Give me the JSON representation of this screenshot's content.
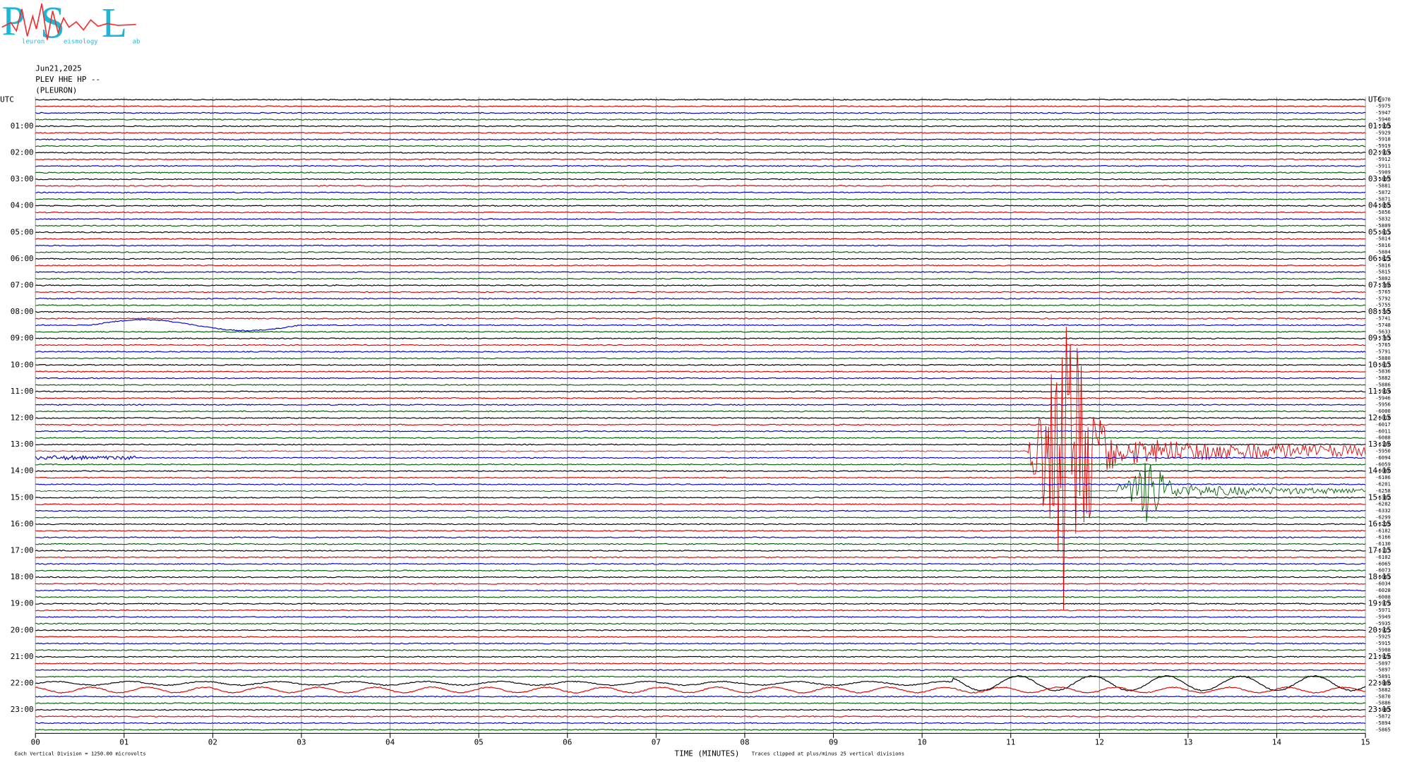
{
  "header": {
    "logo": {
      "letters": [
        "P",
        "S",
        "L"
      ],
      "words": [
        "leuron",
        "eismology",
        "ab"
      ]
    },
    "date": "Jun21,2025",
    "station": "PLEV HHE HP --",
    "site": "(PLEURON)"
  },
  "left_labels": [
    "UTC",
    "01:00",
    "02:00",
    "03:00",
    "04:00",
    "05:00",
    "06:00",
    "07:00",
    "08:00",
    "09:00",
    "10:00",
    "11:00",
    "12:00",
    "13:00",
    "14:00",
    "15:00",
    "16:00",
    "17:00",
    "18:00",
    "19:00",
    "20:00",
    "21:00",
    "22:00",
    "23:00"
  ],
  "right_labels": [
    "UTC",
    "01:15",
    "02:15",
    "03:15",
    "04:15",
    "05:15",
    "06:15",
    "07:15",
    "08:15",
    "09:15",
    "10:15",
    "11:15",
    "12:15",
    "13:15",
    "14:15",
    "15:15",
    "16:15",
    "17:15",
    "18:15",
    "19:15",
    "20:15",
    "21:15",
    "22:15",
    "23:15"
  ],
  "trace_offsets": [
    -5970,
    -5975,
    -5947,
    -5940,
    -5933,
    -5929,
    -5918,
    -5919,
    -5914,
    -5912,
    -5911,
    -5909,
    -5897,
    -5881,
    -5872,
    -5871,
    -5855,
    -5856,
    -5832,
    -5809,
    -5811,
    -5814,
    -5816,
    -5804,
    -5823,
    -5816,
    -5815,
    -5802,
    -5788,
    -5765,
    -5792,
    -5755,
    -5745,
    -5741,
    -5748,
    -5633,
    -5763,
    -5765,
    -5791,
    -5880,
    -5817,
    -5836,
    -5882,
    -5886,
    -5914,
    -5946,
    -5956,
    -6000,
    -6018,
    -6017,
    -6011,
    -6088,
    -6190,
    -5950,
    -6094,
    -6059,
    -6080,
    -6106,
    -6201,
    -6258,
    -6302,
    -6282,
    -6332,
    -6299,
    -6239,
    -6182,
    -6166,
    -6130,
    -6117,
    -6102,
    -6065,
    -6073,
    -6061,
    -6034,
    -6028,
    -6008,
    -5979,
    -5971,
    -5949,
    -5935,
    -5921,
    -5925,
    -5915,
    -5908,
    -5920,
    -5897,
    -5897,
    -5891,
    -5886,
    -5882,
    -5870,
    -5886,
    -5883,
    -5872,
    -5894,
    -5865
  ],
  "x_labels": [
    "00",
    "01",
    "02",
    "03",
    "04",
    "05",
    "06",
    "07",
    "08",
    "09",
    "10",
    "11",
    "12",
    "13",
    "14",
    "15"
  ],
  "footer": {
    "scale": "Each Vertical Division = 1250.00 microvolts",
    "axis_title": "TIME (MINUTES)",
    "clip": "Traces clipped at plus/minus 25 vertical divisions"
  }
}
